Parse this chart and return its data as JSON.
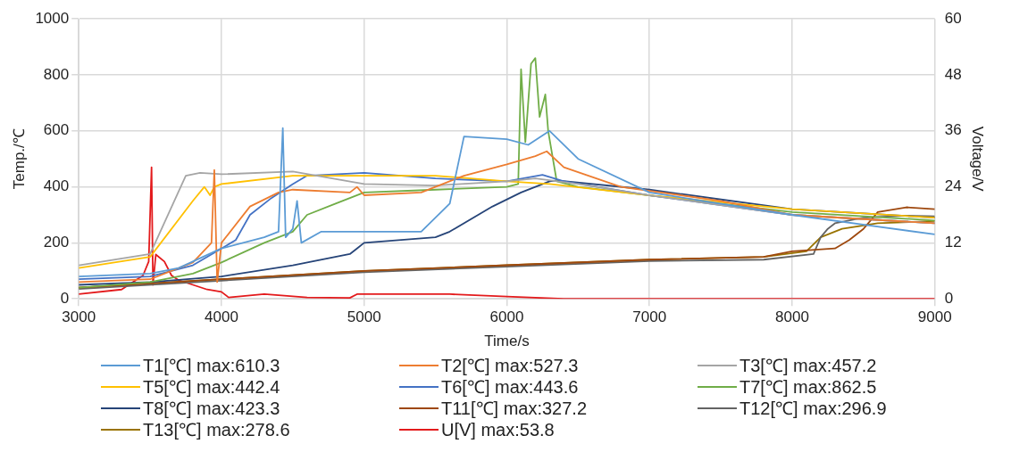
{
  "chart_data": {
    "type": "line",
    "xlabel": "Time/s",
    "ylabel": "Temp./℃",
    "y2label": "Voltage/V",
    "xlim": [
      3000,
      9000
    ],
    "xticks": [
      3000,
      4000,
      5000,
      6000,
      7000,
      8000,
      9000
    ],
    "ylim": [
      0,
      1000
    ],
    "yticks": [
      0,
      200,
      400,
      600,
      800,
      1000
    ],
    "y2lim": [
      0,
      60
    ],
    "y2ticks": [
      0,
      12,
      24,
      36,
      48,
      60
    ],
    "grid": true,
    "legend": "bottom",
    "marker": "none",
    "line_style": "solid",
    "series": [
      {
        "name": "T1[℃] max:610.3",
        "color": "#5b9bd5",
        "x": [
          3000,
          3500,
          3700,
          4000,
          4300,
          4400,
          4430,
          4450,
          4500,
          4530,
          4560,
          4700,
          5400,
          5600,
          5700,
          6000,
          6150,
          6300,
          6500,
          7000,
          8000,
          9000
        ],
        "values": [
          80,
          90,
          110,
          180,
          220,
          240,
          610,
          220,
          250,
          350,
          200,
          240,
          240,
          340,
          580,
          570,
          550,
          600,
          500,
          380,
          300,
          230
        ]
      },
      {
        "name": "T2[℃] max:527.3",
        "color": "#ed7d31",
        "x": [
          3000,
          3500,
          3800,
          3930,
          3950,
          3970,
          4000,
          4200,
          4400,
          4500,
          4900,
          4950,
          5000,
          5400,
          5700,
          6000,
          6200,
          6280,
          6400,
          6800,
          7500,
          8000,
          9000
        ],
        "values": [
          60,
          70,
          130,
          200,
          460,
          60,
          200,
          330,
          380,
          390,
          380,
          400,
          370,
          380,
          440,
          480,
          510,
          527,
          470,
          400,
          350,
          300,
          270
        ]
      },
      {
        "name": "T3[℃] max:457.2",
        "color": "#a5a5a5",
        "x": [
          3000,
          3500,
          3750,
          3850,
          4000,
          4500,
          5000,
          5500,
          6000,
          6200,
          6500,
          7000,
          8000,
          9000
        ],
        "values": [
          120,
          160,
          440,
          450,
          445,
          455,
          410,
          405,
          420,
          430,
          410,
          370,
          300,
          270
        ]
      },
      {
        "name": "T5[℃] max:442.4",
        "color": "#ffc000",
        "x": [
          3000,
          3500,
          3800,
          3880,
          3920,
          3950,
          4000,
          4500,
          5000,
          5500,
          6000,
          6300,
          7000,
          8000,
          9000
        ],
        "values": [
          110,
          150,
          350,
          400,
          370,
          400,
          410,
          440,
          440,
          440,
          420,
          410,
          370,
          320,
          290
        ]
      },
      {
        "name": "T6[℃] max:443.6",
        "color": "#4472c4",
        "x": [
          3000,
          3500,
          3800,
          4000,
          4100,
          4200,
          4350,
          4500,
          4600,
          5000,
          5500,
          6000,
          6250,
          6400,
          7000,
          8000,
          9000
        ],
        "values": [
          70,
          80,
          120,
          180,
          210,
          300,
          360,
          410,
          440,
          450,
          430,
          420,
          443,
          420,
          370,
          300,
          270
        ]
      },
      {
        "name": "T7[℃] max:862.5",
        "color": "#70ad47",
        "x": [
          3000,
          3500,
          3800,
          4000,
          4300,
          4500,
          4600,
          4800,
          5000,
          5500,
          6000,
          6080,
          6100,
          6130,
          6170,
          6200,
          6230,
          6270,
          6290,
          6350,
          6500,
          7000,
          8000,
          9000
        ],
        "values": [
          40,
          60,
          90,
          130,
          200,
          240,
          300,
          340,
          380,
          390,
          400,
          410,
          820,
          560,
          840,
          860,
          650,
          730,
          600,
          420,
          400,
          370,
          310,
          280
        ]
      },
      {
        "name": "T8[℃] max:423.3",
        "color": "#264478",
        "x": [
          3000,
          3500,
          4000,
          4500,
          4900,
          4950,
          5000,
          5500,
          5600,
          5900,
          6100,
          6300,
          6350,
          7000,
          8000,
          9000
        ],
        "values": [
          50,
          60,
          80,
          120,
          160,
          180,
          200,
          220,
          240,
          330,
          380,
          420,
          423,
          390,
          320,
          290
        ]
      },
      {
        "name": "T11[℃] max:327.2",
        "color": "#9e480e",
        "x": [
          3000,
          4000,
          5000,
          6000,
          7000,
          7800,
          8000,
          8300,
          8400,
          8500,
          8600,
          8800,
          9000
        ],
        "values": [
          40,
          70,
          100,
          120,
          140,
          150,
          170,
          180,
          210,
          250,
          310,
          327,
          320
        ]
      },
      {
        "name": "T12[℃] max:296.9",
        "color": "#636363",
        "x": [
          3000,
          4000,
          5000,
          6000,
          7000,
          7800,
          8150,
          8200,
          8250,
          8300,
          8500,
          8800,
          9000
        ],
        "values": [
          35,
          65,
          95,
          115,
          135,
          140,
          160,
          220,
          250,
          270,
          290,
          297,
          295
        ]
      },
      {
        "name": "T13[℃] max:278.6",
        "color": "#997300",
        "x": [
          3000,
          4000,
          5000,
          6000,
          7000,
          7800,
          8100,
          8200,
          8350,
          8600,
          9000
        ],
        "values": [
          40,
          70,
          100,
          120,
          140,
          150,
          170,
          220,
          250,
          270,
          278
        ]
      },
      {
        "name": "U[V] max:53.8",
        "color": "#e31a1c",
        "axis": "y2",
        "x": [
          3000,
          3300,
          3450,
          3490,
          3510,
          3520,
          3540,
          3600,
          3650,
          3700,
          3900,
          4000,
          4050,
          4300,
          4600,
          4900,
          4950,
          5600,
          6000,
          6400,
          9000
        ],
        "values": [
          1,
          2,
          5,
          8,
          28.2,
          3,
          9.5,
          8,
          5,
          4,
          2,
          1.5,
          0.3,
          1,
          0.3,
          0.2,
          1,
          1,
          0.5,
          0,
          0
        ]
      }
    ]
  }
}
